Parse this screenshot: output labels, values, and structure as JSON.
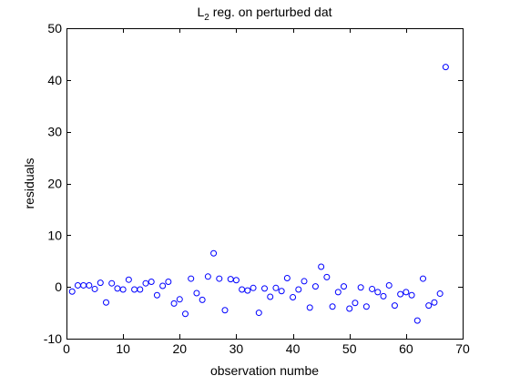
{
  "chart_data": {
    "type": "scatter",
    "title_main": "L",
    "title_sub": "2",
    "title_rest": " reg. on perturbed dat",
    "xlabel": "observation numbe",
    "ylabel": "residuals",
    "xlim": [
      0,
      70
    ],
    "ylim": [
      -10,
      50
    ],
    "xticks": [
      0,
      10,
      20,
      30,
      40,
      50,
      60,
      70
    ],
    "yticks": [
      -10,
      0,
      10,
      20,
      30,
      40,
      50
    ],
    "xtick_labels": [
      "0",
      "10",
      "20",
      "30",
      "40",
      "50",
      "60",
      "70"
    ],
    "ytick_labels": [
      "-10",
      "0",
      "10",
      "20",
      "30",
      "40",
      "50"
    ],
    "grid": false,
    "marker": "circle-open",
    "marker_color": "#0000ff",
    "series": [
      {
        "x": [
          1,
          2,
          3,
          4,
          5,
          6,
          7,
          8,
          9,
          10,
          11,
          12,
          13,
          14,
          15,
          16,
          17,
          18,
          19,
          20,
          21,
          22,
          23,
          24,
          25,
          26,
          27,
          28,
          29,
          30,
          31,
          32,
          33,
          34,
          35,
          36,
          37,
          38,
          39,
          40,
          41,
          42,
          43,
          44,
          45,
          46,
          47,
          48,
          49,
          50,
          51,
          52,
          53,
          54,
          55,
          56,
          57,
          58,
          59,
          60,
          61,
          62,
          63,
          64,
          65,
          66,
          67
        ],
        "y": [
          -0.9,
          0.3,
          0.3,
          0.3,
          -0.4,
          0.8,
          -3.0,
          0.7,
          -0.3,
          -0.5,
          1.4,
          -0.5,
          -0.5,
          0.7,
          1.0,
          -1.6,
          0.2,
          1.0,
          -3.2,
          -2.4,
          -5.2,
          1.6,
          -1.2,
          -2.5,
          2.0,
          6.5,
          1.6,
          -4.5,
          1.5,
          1.3,
          -0.5,
          -0.7,
          -0.2,
          -5.0,
          -0.3,
          -1.9,
          -0.2,
          -0.8,
          1.7,
          -2.0,
          -0.5,
          1.1,
          -4.0,
          0.1,
          3.9,
          1.9,
          -3.8,
          -1.0,
          0.1,
          -4.2,
          -3.1,
          -0.1,
          -3.8,
          -0.4,
          -1.0,
          -1.8,
          0.3,
          -3.6,
          -1.4,
          -1.0,
          -1.6,
          -6.5,
          1.6,
          -3.6,
          -3.0,
          -1.3,
          42.5
        ]
      }
    ]
  }
}
